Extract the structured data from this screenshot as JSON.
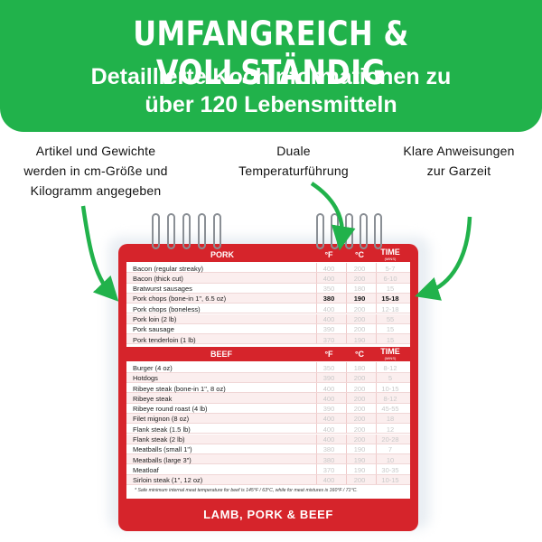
{
  "banner": {
    "title": "UMFANGREICH & VOLLSTÄNDIG",
    "subtitle_line1": "Detaillierte Kochinformationen zu",
    "subtitle_line2": "über 120 Lebensmitteln",
    "color": "#21b24b"
  },
  "callouts": {
    "left": [
      "Artikel und Gewichte",
      "werden in cm-Größe und",
      "Kilogramm angegeben"
    ],
    "middle": [
      "Duale",
      "Temperaturführung"
    ],
    "right": [
      "Klare Anweisungen",
      "zur Garzeit"
    ]
  },
  "card": {
    "accent_color": "#d6242b",
    "columns": {
      "f": "°F",
      "c": "°C",
      "time": "TIME",
      "time_unit": "(MINS)"
    },
    "sections": [
      {
        "name": "PORK",
        "rows": [
          {
            "name": "Bacon (regular streaky)",
            "f": "400",
            "c": "200",
            "time": "5-7"
          },
          {
            "name": "Bacon (thick cut)",
            "f": "400",
            "c": "200",
            "time": "6-10"
          },
          {
            "name": "Bratwurst sausages",
            "f": "350",
            "c": "180",
            "time": "15"
          },
          {
            "name": "Pork chops (bone-in 1\", 6.5 oz)",
            "f": "380",
            "c": "190",
            "time": "15-18",
            "highlight": true
          },
          {
            "name": "Pork chops (boneless)",
            "f": "400",
            "c": "200",
            "time": "12-18"
          },
          {
            "name": "Pork loin (2 lb)",
            "f": "400",
            "c": "200",
            "time": "55"
          },
          {
            "name": "Pork sausage",
            "f": "390",
            "c": "200",
            "time": "15"
          },
          {
            "name": "Pork tenderloin (1 lb)",
            "f": "370",
            "c": "190",
            "time": "15"
          }
        ]
      },
      {
        "name": "BEEF",
        "rows": [
          {
            "name": "Burger (4 oz)",
            "f": "350",
            "c": "180",
            "time": "8-12"
          },
          {
            "name": "Hotdogs",
            "f": "390",
            "c": "200",
            "time": "5"
          },
          {
            "name": "Ribeye steak (bone-in 1\", 8 oz)",
            "f": "400",
            "c": "200",
            "time": "10-15"
          },
          {
            "name": "Ribeye steak",
            "f": "400",
            "c": "200",
            "time": "8-12"
          },
          {
            "name": "Ribeye round roast (4 lb)",
            "f": "390",
            "c": "200",
            "time": "45-55"
          },
          {
            "name": "Filet mignon (8 oz)",
            "f": "400",
            "c": "200",
            "time": "18"
          },
          {
            "name": "Flank steak (1.5 lb)",
            "f": "400",
            "c": "200",
            "time": "12"
          },
          {
            "name": "Flank steak (2 lb)",
            "f": "400",
            "c": "200",
            "time": "20-28"
          },
          {
            "name": "Meatballs (small 1\")",
            "f": "380",
            "c": "190",
            "time": "7"
          },
          {
            "name": "Meatballs (large 3\")",
            "f": "380",
            "c": "190",
            "time": "10"
          },
          {
            "name": "Meatloaf",
            "f": "370",
            "c": "190",
            "time": "30-35"
          },
          {
            "name": "Sirloin steak (1\", 12 oz)",
            "f": "400",
            "c": "200",
            "time": "10-15"
          }
        ]
      }
    ],
    "footnote": "* Safe minimum internal meat temperature for beef is 145°F / 63°C, while for meat mixtures is 160°F / 71°C.",
    "footer_title": "LAMB, PORK & BEEF"
  }
}
